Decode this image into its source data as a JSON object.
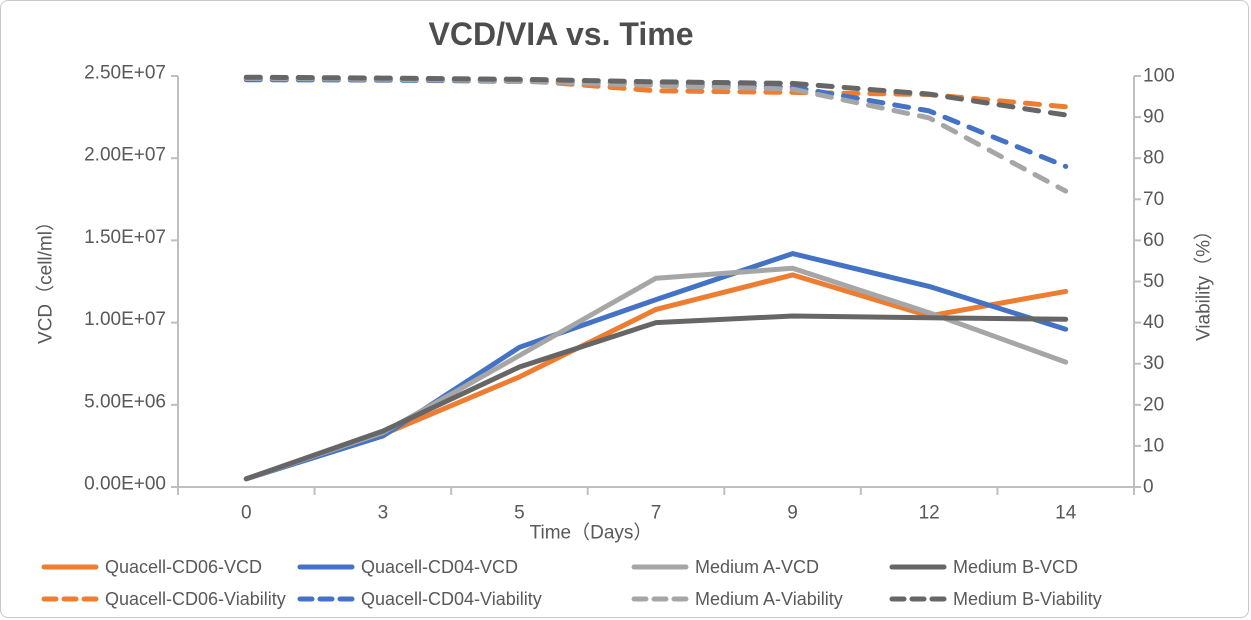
{
  "chart_data": {
    "type": "line",
    "title": "VCD/VIA vs. Time",
    "xlabel": "Time（Days）",
    "categories": [
      "0",
      "3",
      "5",
      "7",
      "9",
      "12",
      "14"
    ],
    "y_left": {
      "label": "VCD（cell/ml）",
      "min": 0,
      "max": 25000000,
      "tick_labels": [
        "0.00E+00",
        "5.00E+06",
        "1.00E+07",
        "1.50E+07",
        "2.00E+07",
        "2.50E+07"
      ]
    },
    "y_right": {
      "label": "Viability（%）",
      "min": 0,
      "max": 100,
      "tick_step": 10
    },
    "grid": "off",
    "legend_position": "bottom",
    "series": [
      {
        "name": "Quacell-CD06-VCD",
        "axis": "left",
        "style": "solid",
        "color": "#ED7D31",
        "values": [
          500000,
          3200000,
          6700000,
          10800000,
          12900000,
          10400000,
          11900000
        ]
      },
      {
        "name": "Quacell-CD04-VCD",
        "axis": "left",
        "style": "solid",
        "color": "#4472C4",
        "values": [
          500000,
          3100000,
          8500000,
          11400000,
          14200000,
          12200000,
          9600000
        ]
      },
      {
        "name": "Medium A-VCD",
        "axis": "left",
        "style": "solid",
        "color": "#A6A6A6",
        "values": [
          500000,
          3300000,
          8000000,
          12700000,
          13300000,
          10600000,
          7600000
        ]
      },
      {
        "name": "Medium B-VCD",
        "axis": "left",
        "style": "solid",
        "color": "#666666",
        "values": [
          500000,
          3400000,
          7300000,
          10000000,
          10400000,
          10300000,
          10200000
        ]
      },
      {
        "name": "Quacell-CD06-Viability",
        "axis": "right",
        "style": "dashed",
        "color": "#ED7D31",
        "values": [
          99.3,
          99.2,
          99.0,
          96.4,
          96.0,
          95.5,
          92.5
        ]
      },
      {
        "name": "Quacell-CD04-Viability",
        "axis": "right",
        "style": "dashed",
        "color": "#4472C4",
        "values": [
          99.1,
          99.0,
          98.7,
          98.0,
          97.3,
          91.5,
          78.0
        ]
      },
      {
        "name": "Medium A-Viability",
        "axis": "right",
        "style": "dashed",
        "color": "#A6A6A6",
        "values": [
          99.4,
          99.2,
          98.8,
          97.7,
          96.8,
          89.8,
          72.0
        ]
      },
      {
        "name": "Medium B-Viability",
        "axis": "right",
        "style": "dashed",
        "color": "#666666",
        "values": [
          99.7,
          99.5,
          99.2,
          98.6,
          98.2,
          95.6,
          90.5
        ]
      }
    ]
  },
  "style": {
    "axis_line_color": "#BFBFBF",
    "tick_label_color": "#595959",
    "title_color": "#4d4d4d",
    "legend_text_color": "#595959"
  }
}
